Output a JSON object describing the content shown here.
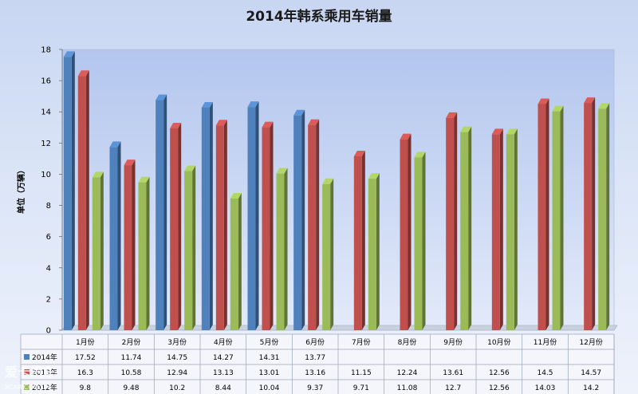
{
  "chart_data": {
    "type": "bar",
    "title": "2014年韩系乘用车销量",
    "ylabel": "单位（万辆）",
    "xlabel": "",
    "ylim": [
      0,
      18
    ],
    "yticks": [
      0,
      2,
      4,
      6,
      8,
      10,
      12,
      14,
      16,
      18
    ],
    "grid": false,
    "legend": "table-left",
    "categories": [
      "1月份",
      "2月份",
      "3月份",
      "4月份",
      "5月份",
      "6月份",
      "7月份",
      "8月份",
      "9月份",
      "10月份",
      "11月份",
      "12月份"
    ],
    "series": [
      {
        "name": "2014年",
        "color": "#4f81bd",
        "values": [
          17.52,
          11.74,
          14.75,
          14.27,
          14.31,
          13.77,
          null,
          null,
          null,
          null,
          null,
          null
        ]
      },
      {
        "name": "2013年",
        "color": "#c0504d",
        "values": [
          16.3,
          10.58,
          12.94,
          13.13,
          13.01,
          13.16,
          11.15,
          12.24,
          13.61,
          12.56,
          14.5,
          14.57
        ]
      },
      {
        "name": "2012年",
        "color": "#9bbb59",
        "values": [
          9.8,
          9.48,
          10.2,
          8.44,
          10.04,
          9.37,
          9.71,
          11.08,
          12.7,
          12.56,
          14.03,
          14.2
        ]
      }
    ]
  },
  "watermark": {
    "main": "爱卡汽车",
    "sub": "XCAR.COM.CN"
  }
}
